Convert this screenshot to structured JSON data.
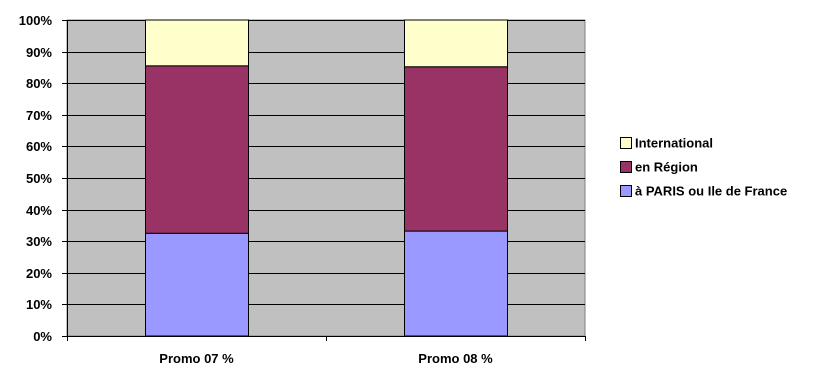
{
  "chart_data": {
    "type": "bar",
    "stacked": true,
    "percent_stacked": true,
    "categories": [
      "Promo 07 %",
      "Promo 08 %"
    ],
    "series": [
      {
        "name": "à PARIS ou Ile de France",
        "values": [
          32.5,
          33.2
        ],
        "color": "#9999ff"
      },
      {
        "name": "en Région",
        "values": [
          53.0,
          52.0
        ],
        "color": "#993366"
      },
      {
        "name": "International",
        "values": [
          14.5,
          14.8
        ],
        "color": "#ffffcc"
      }
    ],
    "ylim": [
      0,
      100
    ],
    "y_ticks": [
      "0%",
      "10%",
      "20%",
      "30%",
      "40%",
      "50%",
      "60%",
      "70%",
      "80%",
      "90%",
      "100%"
    ],
    "plot_background": "#c0c0c0",
    "grid": true,
    "legend": "right",
    "legend_order": [
      "International",
      "en Région",
      "à PARIS ou Ile de France"
    ]
  }
}
